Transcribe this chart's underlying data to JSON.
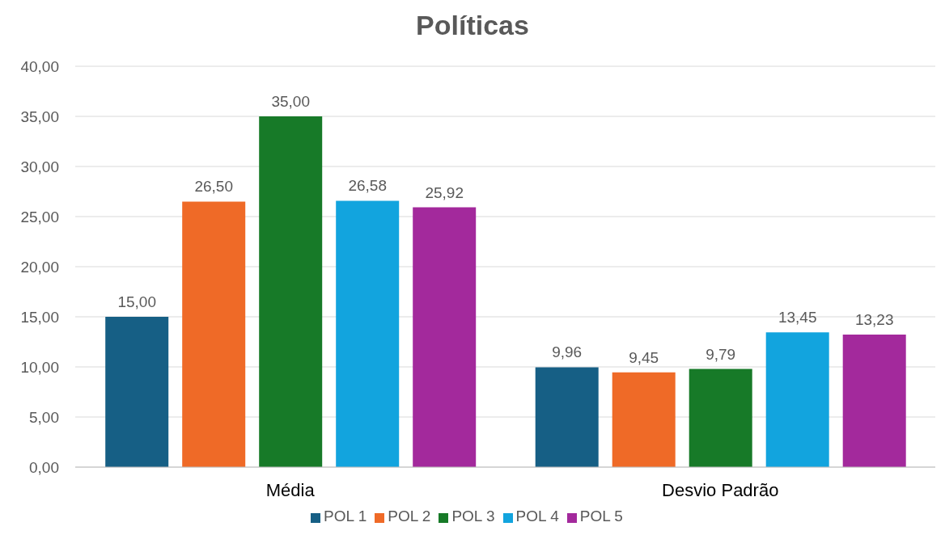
{
  "chart_data": {
    "type": "bar",
    "title": "Políticas",
    "categories": [
      "Média",
      "Desvio Padrão"
    ],
    "series": [
      {
        "name": "POL 1",
        "color": "#165f85",
        "values": [
          15.0,
          9.96
        ],
        "value_labels": [
          "15,00",
          "9,96"
        ]
      },
      {
        "name": "POL 2",
        "color": "#ef6a27",
        "values": [
          26.5,
          9.45
        ],
        "value_labels": [
          "26,50",
          "9,45"
        ]
      },
      {
        "name": "POL 3",
        "color": "#177a28",
        "values": [
          35.0,
          9.79
        ],
        "value_labels": [
          "35,00",
          "9,79"
        ]
      },
      {
        "name": "POL 4",
        "color": "#12a4de",
        "values": [
          26.58,
          13.45
        ],
        "value_labels": [
          "26,58",
          "13,45"
        ]
      },
      {
        "name": "POL 5",
        "color": "#a3299c",
        "values": [
          25.92,
          13.23
        ],
        "value_labels": [
          "25,92",
          "13,23"
        ]
      }
    ],
    "ylim": [
      0,
      40
    ],
    "yticks": [
      {
        "value": 0,
        "label": "0,00"
      },
      {
        "value": 5,
        "label": "5,00"
      },
      {
        "value": 10,
        "label": "10,00"
      },
      {
        "value": 15,
        "label": "15,00"
      },
      {
        "value": 20,
        "label": "20,00"
      },
      {
        "value": 25,
        "label": "25,00"
      },
      {
        "value": 30,
        "label": "30,00"
      },
      {
        "value": 35,
        "label": "35,00"
      },
      {
        "value": 40,
        "label": "40,00"
      }
    ],
    "grid": "y",
    "legend": "bottom"
  }
}
